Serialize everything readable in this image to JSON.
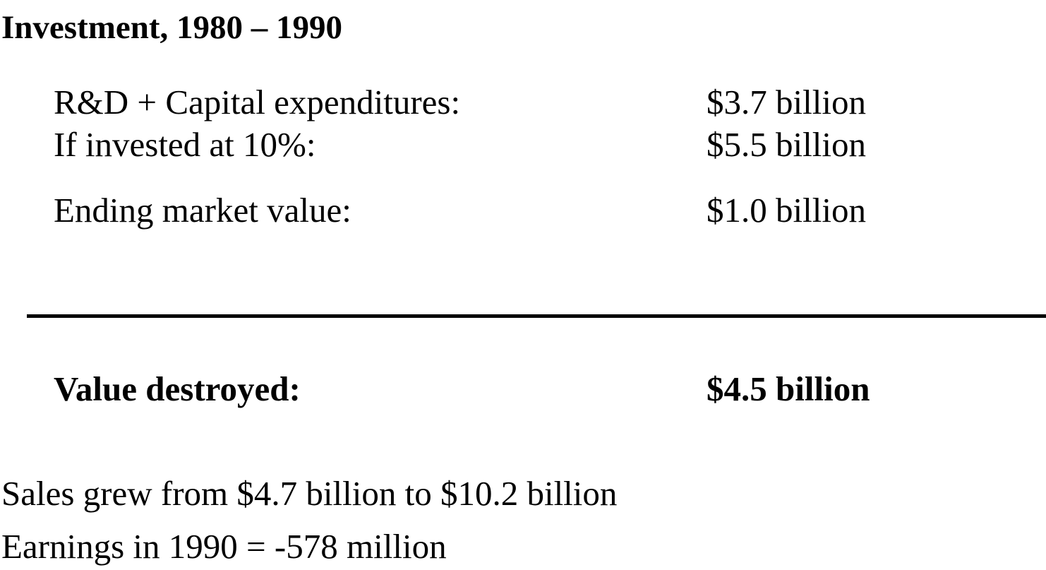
{
  "title": "Investment, 1980 – 1990",
  "rows": [
    {
      "label": "R&D + Capital expenditures:",
      "value": "$3.7 billion"
    },
    {
      "label": "If invested at 10%:",
      "value": "$5.5 billion"
    },
    {
      "label": "Ending market value:",
      "value": "$1.0 billion"
    }
  ],
  "total": {
    "label": "Value destroyed:",
    "value": "$4.5 billion"
  },
  "notes": [
    "Sales grew from $4.7 billion to $10.2 billion",
    "Earnings in 1990 = -578 million"
  ]
}
